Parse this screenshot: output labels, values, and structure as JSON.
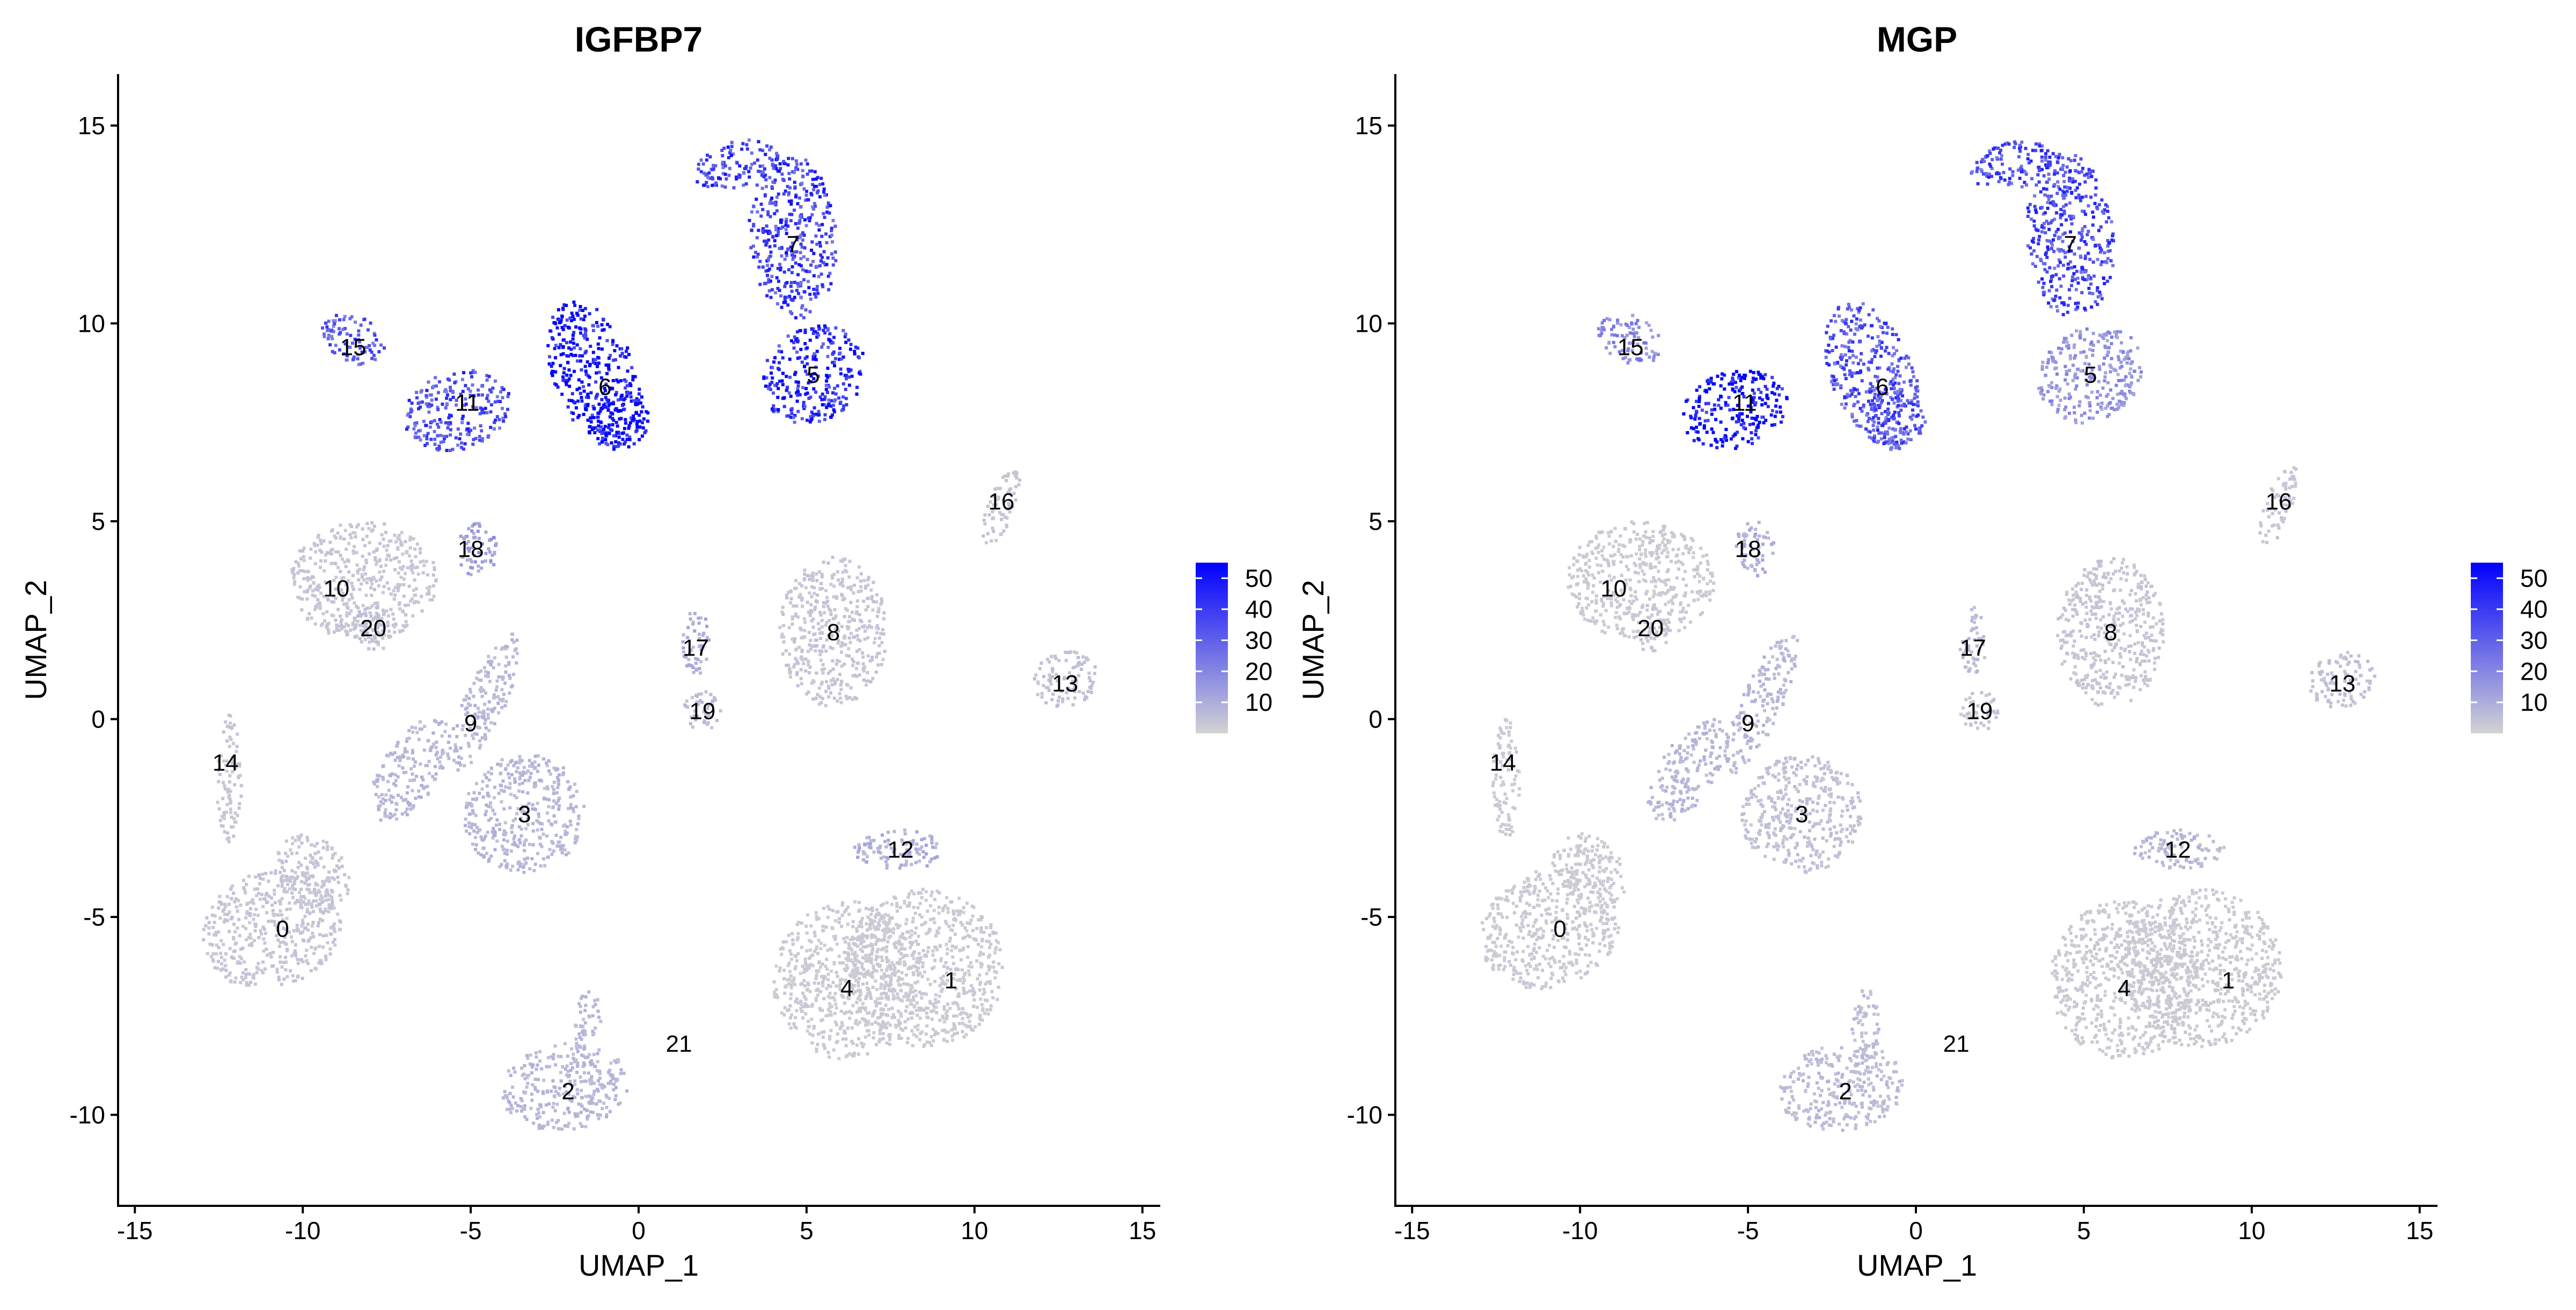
{
  "figure": {
    "layout": "two umap feature plots side by side"
  },
  "colors": {
    "low": "#D3D3D3",
    "high": "#0000FF",
    "axis": "#000000",
    "background": "#FFFFFF"
  },
  "chart_data": [
    {
      "type": "scatter",
      "title": "IGFBP7",
      "xlabel": "UMAP_1",
      "ylabel": "UMAP_2",
      "xlim": [
        -15.5,
        15.5
      ],
      "ylim": [
        -12.3,
        16.3
      ],
      "xticks": [
        -15,
        -10,
        -5,
        0,
        5,
        10,
        15
      ],
      "yticks": [
        -10,
        -5,
        0,
        5,
        10,
        15
      ],
      "grid": false,
      "color_scale": {
        "min": 0,
        "max": 55,
        "ticks": [
          10,
          20,
          30,
          40,
          50
        ],
        "low_color": "#D3D3D3",
        "high_color": "#0000FF"
      },
      "legend_position": "right",
      "cluster_labels": [
        {
          "label": "0",
          "x": -10.6,
          "y": -5.3
        },
        {
          "label": "1",
          "x": 9.3,
          "y": -6.6
        },
        {
          "label": "2",
          "x": -2.1,
          "y": -9.4
        },
        {
          "label": "3",
          "x": -3.4,
          "y": -2.4
        },
        {
          "label": "4",
          "x": 6.2,
          "y": -6.8
        },
        {
          "label": "5",
          "x": 5.2,
          "y": 8.7
        },
        {
          "label": "6",
          "x": -1.0,
          "y": 8.4
        },
        {
          "label": "7",
          "x": 4.6,
          "y": 12.0
        },
        {
          "label": "8",
          "x": 5.8,
          "y": 2.2
        },
        {
          "label": "9",
          "x": -5.0,
          "y": -0.1
        },
        {
          "label": "10",
          "x": -9.0,
          "y": 3.3
        },
        {
          "label": "11",
          "x": -5.1,
          "y": 8.0
        },
        {
          "label": "12",
          "x": 7.8,
          "y": -3.3
        },
        {
          "label": "13",
          "x": 12.7,
          "y": 0.9
        },
        {
          "label": "14",
          "x": -12.3,
          "y": -1.1
        },
        {
          "label": "15",
          "x": -8.5,
          "y": 9.4
        },
        {
          "label": "16",
          "x": 10.8,
          "y": 5.5
        },
        {
          "label": "17",
          "x": 1.7,
          "y": 1.8
        },
        {
          "label": "18",
          "x": -5.0,
          "y": 4.3
        },
        {
          "label": "19",
          "x": 1.9,
          "y": 0.2
        },
        {
          "label": "20",
          "x": -7.9,
          "y": 2.3
        },
        {
          "label": "21",
          "x": 1.2,
          "y": -8.2
        }
      ],
      "expression_regions": [
        {
          "cluster": "0",
          "level": 3
        },
        {
          "cluster": "1",
          "level": 2
        },
        {
          "cluster": "2",
          "level": 6
        },
        {
          "cluster": "3",
          "level": 6
        },
        {
          "cluster": "4",
          "level": 2
        },
        {
          "cluster": "5",
          "level": 38
        },
        {
          "cluster": "6",
          "level": 45
        },
        {
          "cluster": "7",
          "level": 32
        },
        {
          "cluster": "8",
          "level": 3
        },
        {
          "cluster": "9",
          "level": 6
        },
        {
          "cluster": "10",
          "level": 3
        },
        {
          "cluster": "11",
          "level": 30
        },
        {
          "cluster": "12",
          "level": 8
        },
        {
          "cluster": "13",
          "level": 4
        },
        {
          "cluster": "14",
          "level": 3
        },
        {
          "cluster": "15",
          "level": 26
        },
        {
          "cluster": "16",
          "level": 3
        },
        {
          "cluster": "17",
          "level": 8
        },
        {
          "cluster": "18",
          "level": 12
        },
        {
          "cluster": "19",
          "level": 5
        },
        {
          "cluster": "20",
          "level": 4
        }
      ]
    },
    {
      "type": "scatter",
      "title": "MGP",
      "xlabel": "UMAP_1",
      "ylabel": "UMAP_2",
      "xlim": [
        -15.5,
        15.5
      ],
      "ylim": [
        -12.3,
        16.3
      ],
      "xticks": [
        -15,
        -10,
        -5,
        0,
        5,
        10,
        15
      ],
      "yticks": [
        -10,
        -5,
        0,
        5,
        10,
        15
      ],
      "grid": false,
      "color_scale": {
        "min": 0,
        "max": 55,
        "ticks": [
          10,
          20,
          30,
          40,
          50
        ],
        "low_color": "#D3D3D3",
        "high_color": "#0000FF"
      },
      "legend_position": "right",
      "cluster_labels": [
        {
          "label": "0",
          "x": -10.6,
          "y": -5.3
        },
        {
          "label": "1",
          "x": 9.3,
          "y": -6.6
        },
        {
          "label": "2",
          "x": -2.1,
          "y": -9.4
        },
        {
          "label": "3",
          "x": -3.4,
          "y": -2.4
        },
        {
          "label": "4",
          "x": 6.2,
          "y": -6.8
        },
        {
          "label": "5",
          "x": 5.2,
          "y": 8.7
        },
        {
          "label": "6",
          "x": -1.0,
          "y": 8.4
        },
        {
          "label": "7",
          "x": 4.6,
          "y": 12.0
        },
        {
          "label": "8",
          "x": 5.8,
          "y": 2.2
        },
        {
          "label": "9",
          "x": -5.0,
          "y": -0.1
        },
        {
          "label": "10",
          "x": -9.0,
          "y": 3.3
        },
        {
          "label": "11",
          "x": -5.1,
          "y": 8.0
        },
        {
          "label": "12",
          "x": 7.8,
          "y": -3.3
        },
        {
          "label": "13",
          "x": 12.7,
          "y": 0.9
        },
        {
          "label": "14",
          "x": -12.3,
          "y": -1.1
        },
        {
          "label": "15",
          "x": -8.5,
          "y": 9.4
        },
        {
          "label": "16",
          "x": 10.8,
          "y": 5.5
        },
        {
          "label": "17",
          "x": 1.7,
          "y": 1.8
        },
        {
          "label": "18",
          "x": -5.0,
          "y": 4.3
        },
        {
          "label": "19",
          "x": 1.9,
          "y": 0.2
        },
        {
          "label": "20",
          "x": -7.9,
          "y": 2.3
        },
        {
          "label": "21",
          "x": 1.2,
          "y": -8.2
        }
      ],
      "expression_regions": [
        {
          "cluster": "0",
          "level": 2
        },
        {
          "cluster": "1",
          "level": 2
        },
        {
          "cluster": "2",
          "level": 5
        },
        {
          "cluster": "3",
          "level": 4
        },
        {
          "cluster": "4",
          "level": 2
        },
        {
          "cluster": "5",
          "level": 14
        },
        {
          "cluster": "6",
          "level": 28
        },
        {
          "cluster": "7",
          "level": 30
        },
        {
          "cluster": "8",
          "level": 3
        },
        {
          "cluster": "9",
          "level": 6
        },
        {
          "cluster": "10",
          "level": 2
        },
        {
          "cluster": "11",
          "level": 46
        },
        {
          "cluster": "12",
          "level": 6
        },
        {
          "cluster": "13",
          "level": 4
        },
        {
          "cluster": "14",
          "level": 2
        },
        {
          "cluster": "15",
          "level": 16
        },
        {
          "cluster": "16",
          "level": 3
        },
        {
          "cluster": "17",
          "level": 5
        },
        {
          "cluster": "18",
          "level": 8
        },
        {
          "cluster": "19",
          "level": 3
        },
        {
          "cluster": "20",
          "level": 3
        }
      ]
    }
  ]
}
